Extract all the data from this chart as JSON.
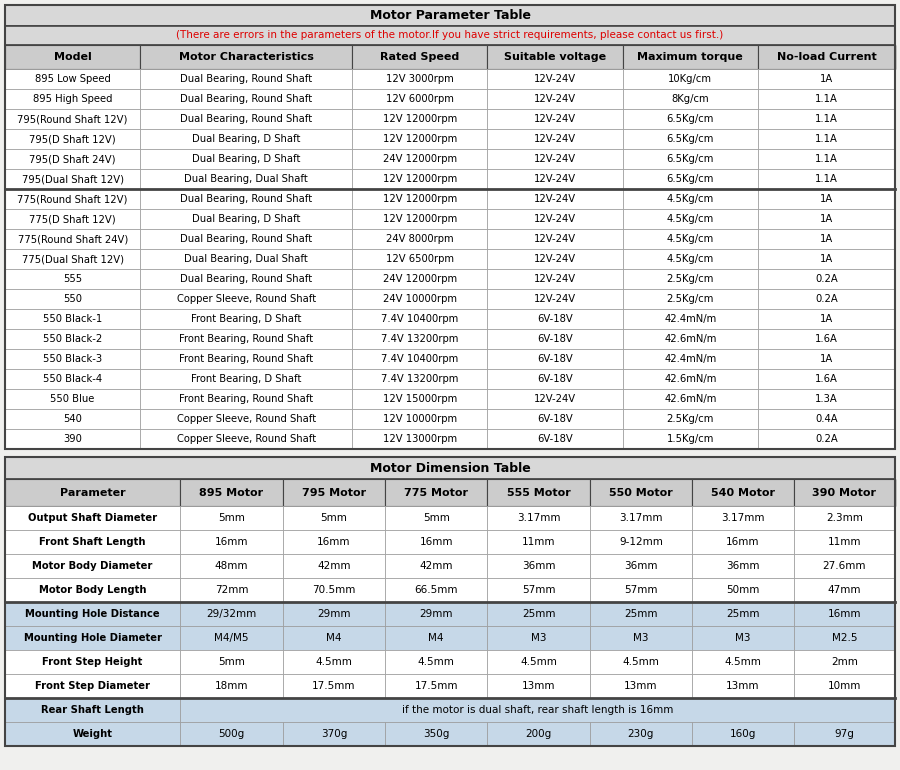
{
  "title1": "Motor Parameter Table",
  "title2": "(There are errors in the parameters of the motor.If you have strict requirements, please contact us first.)",
  "param_headers": [
    "Model",
    "Motor Characteristics",
    "Rated Speed",
    "Suitable voltage",
    "Maximum torque",
    "No-load Current"
  ],
  "param_rows": [
    [
      "895 Low Speed",
      "Dual Bearing, Round Shaft",
      "12V 3000rpm",
      "12V-24V",
      "10Kg/cm",
      "1A"
    ],
    [
      "895 High Speed",
      "Dual Bearing, Round Shaft",
      "12V 6000rpm",
      "12V-24V",
      "8Kg/cm",
      "1.1A"
    ],
    [
      "795(Round Shaft 12V)",
      "Dual Bearing, Round Shaft",
      "12V 12000rpm",
      "12V-24V",
      "6.5Kg/cm",
      "1.1A"
    ],
    [
      "795(D Shaft 12V)",
      "Dual Bearing, D Shaft",
      "12V 12000rpm",
      "12V-24V",
      "6.5Kg/cm",
      "1.1A"
    ],
    [
      "795(D Shaft 24V)",
      "Dual Bearing, D Shaft",
      "24V 12000rpm",
      "12V-24V",
      "6.5Kg/cm",
      "1.1A"
    ],
    [
      "795(Dual Shaft 12V)",
      "Dual Bearing, Dual Shaft",
      "12V 12000rpm",
      "12V-24V",
      "6.5Kg/cm",
      "1.1A"
    ],
    [
      "775(Round Shaft 12V)",
      "Dual Bearing, Round Shaft",
      "12V 12000rpm",
      "12V-24V",
      "4.5Kg/cm",
      "1A"
    ],
    [
      "775(D Shaft 12V)",
      "Dual Bearing, D Shaft",
      "12V 12000rpm",
      "12V-24V",
      "4.5Kg/cm",
      "1A"
    ],
    [
      "775(Round Shaft 24V)",
      "Dual Bearing, Round Shaft",
      "24V 8000rpm",
      "12V-24V",
      "4.5Kg/cm",
      "1A"
    ],
    [
      "775(Dual Shaft 12V)",
      "Dual Bearing, Dual Shaft",
      "12V 6500rpm",
      "12V-24V",
      "4.5Kg/cm",
      "1A"
    ],
    [
      "555",
      "Dual Bearing, Round Shaft",
      "24V 12000rpm",
      "12V-24V",
      "2.5Kg/cm",
      "0.2A"
    ],
    [
      "550",
      "Copper Sleeve, Round Shaft",
      "24V 10000rpm",
      "12V-24V",
      "2.5Kg/cm",
      "0.2A"
    ],
    [
      "550 Black-1",
      "Front Bearing, D Shaft",
      "7.4V 10400rpm",
      "6V-18V",
      "42.4mN/m",
      "1A"
    ],
    [
      "550 Black-2",
      "Front Bearing, Round Shaft",
      "7.4V 13200rpm",
      "6V-18V",
      "42.6mN/m",
      "1.6A"
    ],
    [
      "550 Black-3",
      "Front Bearing, Round Shaft",
      "7.4V 10400rpm",
      "6V-18V",
      "42.4mN/m",
      "1A"
    ],
    [
      "550 Black-4",
      "Front Bearing, D Shaft",
      "7.4V 13200rpm",
      "6V-18V",
      "42.6mN/m",
      "1.6A"
    ],
    [
      "550 Blue",
      "Front Bearing, Round Shaft",
      "12V 15000rpm",
      "12V-24V",
      "42.6mN/m",
      "1.3A"
    ],
    [
      "540",
      "Copper Sleeve, Round Shaft",
      "12V 10000rpm",
      "6V-18V",
      "2.5Kg/cm",
      "0.4A"
    ],
    [
      "390",
      "Copper Sleeve, Round Shaft",
      "12V 13000rpm",
      "6V-18V",
      "1.5Kg/cm",
      "0.2A"
    ]
  ],
  "dim_title": "Motor Dimension Table",
  "dim_headers": [
    "Parameter",
    "895 Motor",
    "795 Motor",
    "775 Motor",
    "555 Motor",
    "550 Motor",
    "540 Motor",
    "390 Motor"
  ],
  "dim_rows": [
    [
      "Output Shaft Diameter",
      "5mm",
      "5mm",
      "5mm",
      "3.17mm",
      "3.17mm",
      "3.17mm",
      "2.3mm"
    ],
    [
      "Front Shaft Length",
      "16mm",
      "16mm",
      "16mm",
      "11mm",
      "9-12mm",
      "16mm",
      "11mm"
    ],
    [
      "Motor Body Diameter",
      "48mm",
      "42mm",
      "42mm",
      "36mm",
      "36mm",
      "36mm",
      "27.6mm"
    ],
    [
      "Motor Body Length",
      "72mm",
      "70.5mm",
      "66.5mm",
      "57mm",
      "57mm",
      "50mm",
      "47mm"
    ],
    [
      "Mounting Hole Distance",
      "29/32mm",
      "29mm",
      "29mm",
      "25mm",
      "25mm",
      "25mm",
      "16mm"
    ],
    [
      "Mounting Hole Diameter",
      "M4/M5",
      "M4",
      "M4",
      "M3",
      "M3",
      "M3",
      "M2.5"
    ],
    [
      "Front Step Height",
      "5mm",
      "4.5mm",
      "4.5mm",
      "4.5mm",
      "4.5mm",
      "4.5mm",
      "2mm"
    ],
    [
      "Front Step Diameter",
      "18mm",
      "17.5mm",
      "17.5mm",
      "13mm",
      "13mm",
      "13mm",
      "10mm"
    ],
    [
      "Rear Shaft Length",
      "if the motor is dual shaft, rear shaft length is 16mm",
      "",
      "",
      "",
      "",
      "",
      ""
    ],
    [
      "Weight",
      "500g",
      "370g",
      "350g",
      "200g",
      "230g",
      "160g",
      "97g"
    ]
  ],
  "param_col_ratios": [
    0.152,
    0.238,
    0.152,
    0.152,
    0.152,
    0.154
  ],
  "dim_col_ratios": [
    0.197,
    0.115,
    0.115,
    0.115,
    0.115,
    0.115,
    0.114,
    0.114
  ],
  "colors": {
    "bg": "#f0f0ee",
    "white": "#ffffff",
    "header_bg": "#cccccc",
    "title_bg": "#d8d8d8",
    "highlight": "#c6d8e8",
    "border_dark": "#444444",
    "border_light": "#999999",
    "red": "#dd0000",
    "black": "#000000"
  },
  "param_thick_border_after": [
    5
  ],
  "dim_thick_border_after": [
    3,
    7
  ],
  "dim_highlight_rows": [
    4,
    5,
    8
  ],
  "dim_weight_highlight": [
    9
  ]
}
